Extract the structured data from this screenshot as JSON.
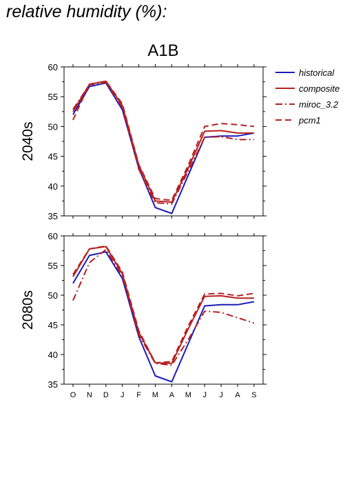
{
  "page_title": "relative humidity (%):",
  "chart_data": {
    "type": "line",
    "title": "A1B",
    "categories": [
      "O",
      "N",
      "D",
      "J",
      "F",
      "M",
      "A",
      "M",
      "J",
      "J",
      "A",
      "S"
    ],
    "ylim": [
      35,
      60
    ],
    "yticks": [
      35,
      40,
      45,
      50,
      55,
      60
    ],
    "legend": {
      "placement": "right",
      "entries": [
        "historical",
        "composite",
        "miroc_3.2",
        "pcm1"
      ]
    },
    "colors": {
      "historical": "#1a1ab8",
      "future": "#b52020"
    },
    "panels": [
      {
        "label": "2040s",
        "series": [
          {
            "name": "historical",
            "style": "solid",
            "color": "#1a1ab8",
            "values": [
              52.0,
              56.7,
              57.3,
              52.8,
              43.0,
              36.4,
              35.4,
              41.8,
              48.2,
              48.4,
              48.4,
              48.9
            ]
          },
          {
            "name": "composite",
            "style": "solid",
            "color": "#b52020",
            "values": [
              52.5,
              57.1,
              57.6,
              53.5,
              43.5,
              37.5,
              37.3,
              43.0,
              49.2,
              49.3,
              48.9,
              48.9
            ]
          },
          {
            "name": "miroc_3.2",
            "style": "dashdot",
            "color": "#b52020",
            "values": [
              52.9,
              57.0,
              57.4,
              53.2,
              42.8,
              37.2,
              37.0,
              42.5,
              48.2,
              48.3,
              47.8,
              47.8
            ]
          },
          {
            "name": "pcm1",
            "style": "dashed",
            "color": "#b52020",
            "values": [
              51.1,
              57.1,
              57.6,
              53.8,
              43.6,
              37.9,
              37.6,
              43.5,
              50.0,
              50.5,
              50.3,
              50.0
            ]
          }
        ]
      },
      {
        "label": "2080s",
        "series": [
          {
            "name": "historical",
            "style": "solid",
            "color": "#1a1ab8",
            "values": [
              52.0,
              56.7,
              57.3,
              52.8,
              43.0,
              36.4,
              35.4,
              41.8,
              48.2,
              48.4,
              48.4,
              48.9
            ]
          },
          {
            "name": "composite",
            "style": "solid",
            "color": "#b52020",
            "values": [
              53.1,
              57.8,
              58.2,
              53.6,
              43.7,
              38.6,
              38.5,
              44.3,
              49.8,
              49.9,
              49.5,
              49.5
            ]
          },
          {
            "name": "miroc_3.2",
            "style": "dashdot",
            "color": "#b52020",
            "values": [
              49.1,
              55.5,
              57.7,
              53.2,
              43.3,
              38.5,
              38.2,
              42.5,
              47.3,
              47.1,
              46.2,
              45.3
            ]
          },
          {
            "name": "pcm1",
            "style": "dashed",
            "color": "#b52020",
            "values": [
              53.5,
              57.8,
              58.3,
              53.9,
              44.0,
              38.6,
              38.8,
              44.8,
              50.2,
              50.3,
              49.9,
              50.3
            ]
          }
        ]
      }
    ]
  }
}
